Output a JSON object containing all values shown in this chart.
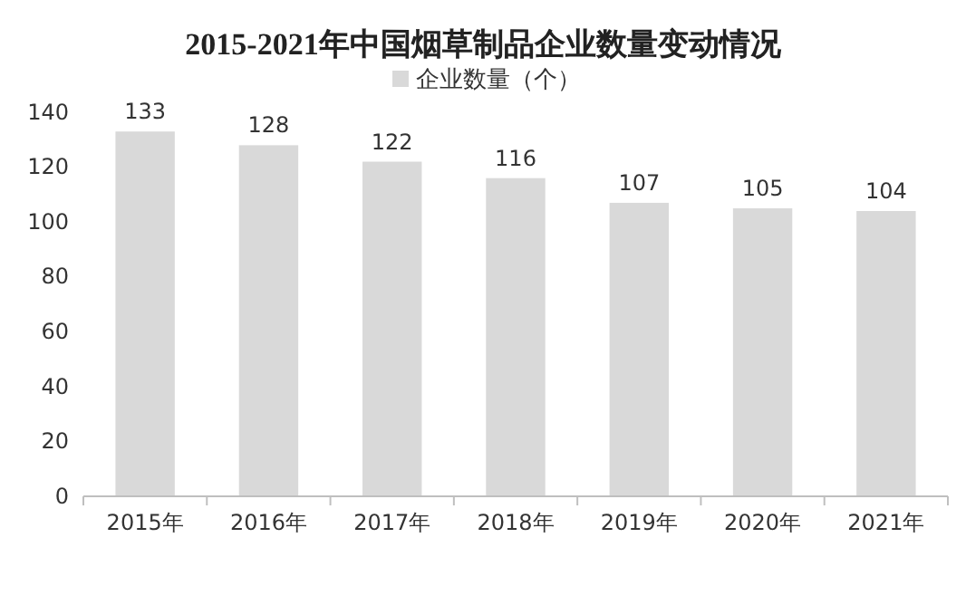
{
  "chart_data": {
    "type": "bar",
    "title": "2015-2021年中国烟草制品企业数量变动情况",
    "categories": [
      "2015年",
      "2016年",
      "2017年",
      "2018年",
      "2019年",
      "2020年",
      "2021年"
    ],
    "series": [
      {
        "name": "企业数量（个）",
        "color": "#d9d9d9",
        "values": [
          133,
          128,
          122,
          116,
          107,
          105,
          104
        ]
      }
    ],
    "ylim": [
      0,
      140
    ],
    "yticks": [
      0,
      20,
      40,
      60,
      80,
      100,
      120,
      140
    ],
    "grid": false,
    "legend": "top",
    "data_labels": true
  }
}
